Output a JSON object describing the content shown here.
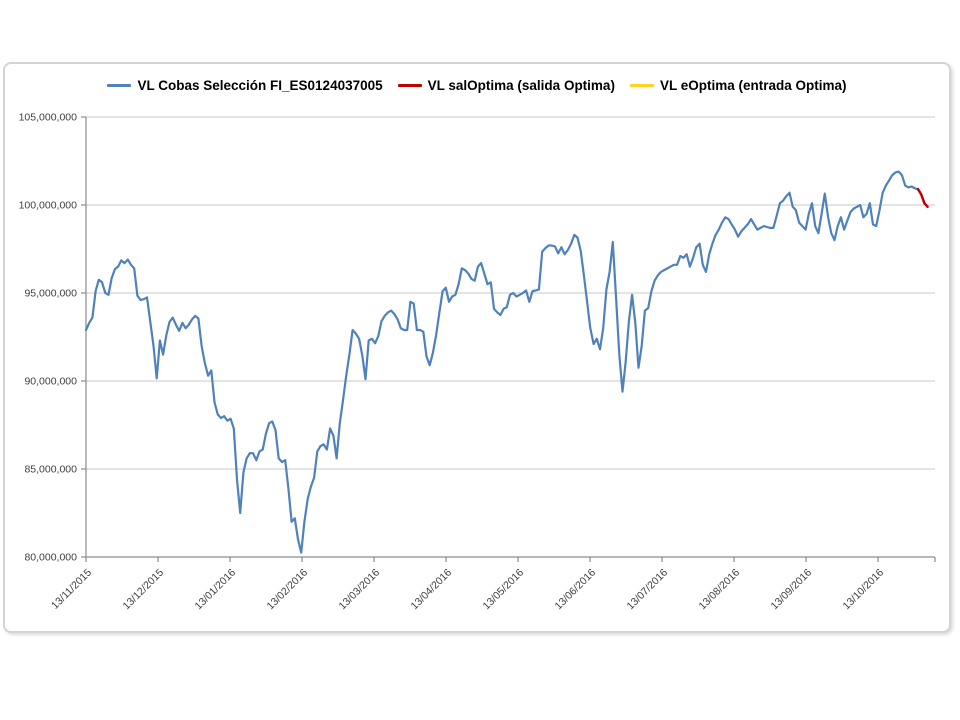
{
  "legend": {
    "items": [
      {
        "label": "VL Cobas Selección FI_ES0124037005",
        "color": "#4F81BD"
      },
      {
        "label": "VL salOptima (salida Optima)",
        "color": "#C00000"
      },
      {
        "label": "VL eOptima (entrada Optima)",
        "color": "#FFD320"
      }
    ]
  },
  "chart_data": {
    "type": "line",
    "title": "",
    "xlabel": "",
    "ylabel": "",
    "grid": true,
    "legend_position": "top-center",
    "value_unit_multiplier": 1000000,
    "ylim_millions": [
      80,
      105
    ],
    "y_tick_values_millions": [
      105,
      100,
      95,
      90,
      85,
      80
    ],
    "y_tick_labels": [
      "105,000,000",
      "100,000,000",
      "95,000,000",
      "90,000,000",
      "85,000,000",
      "80,000,000"
    ],
    "x_tick_labels": [
      "13/11/2015",
      "13/12/2015",
      "13/01/2016",
      "13/02/2016",
      "13/03/2016",
      "13/04/2016",
      "13/05/2016",
      "13/06/2016",
      "13/07/2016",
      "13/08/2016",
      "13/09/2016",
      "13/10/2016"
    ],
    "axis_color": "#8c8c8c",
    "gridline_color": "#c8c8c8",
    "series": [
      {
        "name": "VL Cobas Selección FI_ES0124037005",
        "color": "#4F81BD",
        "stroke_width": 2.2,
        "start_index": 0,
        "values_millions": [
          92.9,
          93.3,
          93.6,
          95.1,
          95.75,
          95.6,
          95.0,
          94.9,
          95.85,
          96.35,
          96.5,
          96.85,
          96.7,
          96.9,
          96.6,
          96.4,
          94.85,
          94.6,
          94.65,
          94.75,
          93.4,
          92.0,
          90.15,
          92.3,
          91.5,
          92.6,
          93.35,
          93.6,
          93.2,
          92.85,
          93.3,
          93.0,
          93.2,
          93.5,
          93.7,
          93.55,
          92.0,
          91.0,
          90.3,
          90.6,
          88.8,
          88.1,
          87.9,
          88.0,
          87.75,
          87.85,
          87.3,
          84.4,
          82.5,
          84.8,
          85.6,
          85.9,
          85.9,
          85.5,
          86.0,
          86.1,
          87.0,
          87.6,
          87.7,
          87.2,
          85.6,
          85.4,
          85.5,
          83.9,
          82.0,
          82.2,
          81.0,
          80.25,
          82.0,
          83.3,
          84.0,
          84.5,
          86.0,
          86.3,
          86.4,
          86.1,
          87.3,
          86.9,
          85.6,
          87.6,
          88.9,
          90.3,
          91.5,
          92.9,
          92.7,
          92.4,
          91.45,
          90.1,
          92.3,
          92.4,
          92.15,
          92.55,
          93.4,
          93.7,
          93.9,
          94.0,
          93.8,
          93.5,
          93.0,
          92.9,
          92.9,
          94.5,
          94.4,
          92.9,
          92.9,
          92.8,
          91.4,
          90.9,
          91.6,
          92.6,
          93.9,
          95.1,
          95.3,
          94.5,
          94.8,
          94.9,
          95.5,
          96.4,
          96.3,
          96.1,
          95.8,
          95.7,
          96.5,
          96.7,
          96.1,
          95.5,
          95.6,
          94.1,
          93.9,
          93.75,
          94.1,
          94.2,
          94.9,
          95.0,
          94.8,
          94.9,
          95.0,
          95.15,
          94.5,
          95.1,
          95.15,
          95.2,
          97.35,
          97.55,
          97.7,
          97.7,
          97.65,
          97.25,
          97.6,
          97.2,
          97.45,
          97.8,
          98.3,
          98.15,
          97.4,
          96.0,
          94.5,
          93.0,
          92.1,
          92.4,
          91.8,
          93.0,
          95.2,
          96.2,
          97.9,
          94.8,
          91.5,
          89.4,
          91.1,
          93.4,
          94.9,
          93.3,
          90.75,
          92.0,
          94.0,
          94.15,
          95.1,
          95.7,
          96.0,
          96.2,
          96.3,
          96.4,
          96.5,
          96.6,
          96.6,
          97.1,
          97.0,
          97.2,
          96.5,
          97.0,
          97.6,
          97.8,
          96.6,
          96.2,
          97.2,
          97.8,
          98.3,
          98.6,
          99.0,
          99.3,
          99.2,
          98.9,
          98.6,
          98.2,
          98.5,
          98.7,
          98.9,
          99.2,
          98.9,
          98.6,
          98.7,
          98.8,
          98.75,
          98.7,
          98.7,
          99.4,
          100.1,
          100.25,
          100.5,
          100.7,
          99.9,
          99.7,
          99.0,
          98.8,
          98.6,
          99.5,
          100.1,
          98.8,
          98.4,
          99.5,
          100.65,
          99.3,
          98.4,
          98.0,
          98.8,
          99.3,
          98.6,
          99.1,
          99.6,
          99.8,
          99.9,
          100.0,
          99.3,
          99.5,
          100.1,
          98.9,
          98.8,
          99.7,
          100.7,
          101.1,
          101.4,
          101.7,
          101.85,
          101.9,
          101.7,
          101.1,
          101.0,
          101.05,
          100.95,
          100.9
        ]
      },
      {
        "name": "VL salOptima (salida Optima)",
        "color": "#C00000",
        "stroke_width": 2.5,
        "start_index": 259,
        "values_millions": [
          100.9,
          100.6,
          100.1,
          99.9
        ]
      },
      {
        "name": "VL eOptima (entrada Optima)",
        "color": "#FFD320",
        "stroke_width": 2.2,
        "start_index": 0,
        "values_millions": []
      }
    ]
  }
}
